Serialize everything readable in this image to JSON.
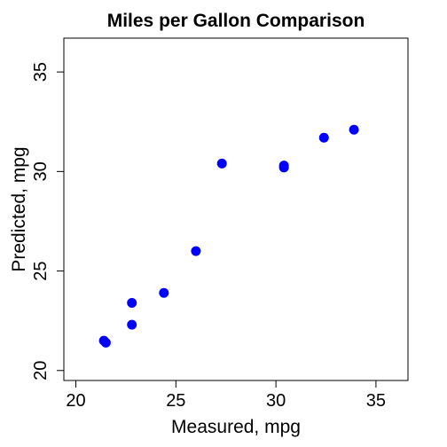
{
  "chart_data": {
    "type": "scatter",
    "title": "Miles per Gallon Comparison",
    "xlabel": "Measured, mpg",
    "ylabel": "Predicted, mpg",
    "xlim": [
      19.4,
      36.6
    ],
    "ylim": [
      19.5,
      36.7
    ],
    "xticks": [
      "20",
      "25",
      "30",
      "35"
    ],
    "yticks": [
      "20",
      "25",
      "30",
      "35"
    ],
    "grid": false,
    "legend": "none",
    "marker_color": "#0000FF",
    "x": [
      21.4,
      21.5,
      22.8,
      22.8,
      24.4,
      26.0,
      27.3,
      30.4,
      30.4,
      32.4,
      33.9
    ],
    "y": [
      21.5,
      21.4,
      22.3,
      23.4,
      23.9,
      26.0,
      30.4,
      30.3,
      30.2,
      31.7,
      32.1
    ]
  }
}
